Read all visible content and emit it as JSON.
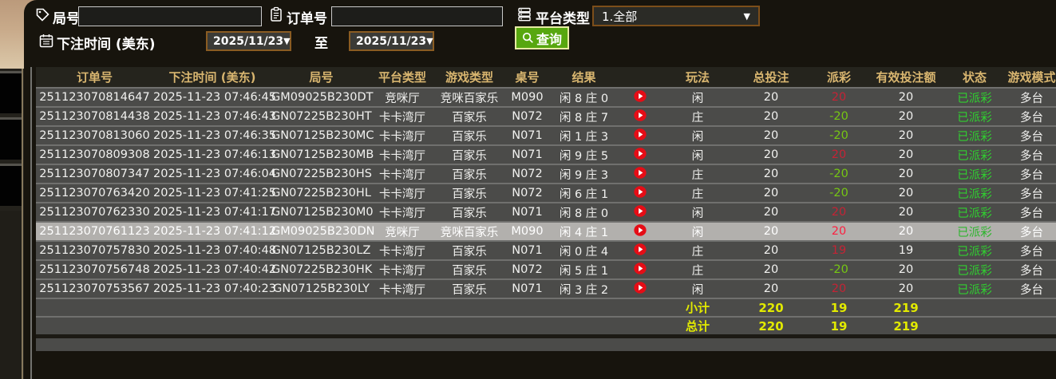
{
  "filter": {
    "game_no_label": "局号",
    "game_no_value": "",
    "order_no_label": "订单号",
    "order_no_value": "",
    "platform_label": "平台类型",
    "platform_value": "1.全部",
    "bet_time_label": "下注时间 (美东)",
    "date_from": "2025/11/23",
    "to_label": "至",
    "date_to": "2025/11/23",
    "query_button": "查询",
    "dropdown_arrow": "▼"
  },
  "table": {
    "headers": {
      "order_no": "订单号",
      "time": "下注时间 (美东)",
      "game_no": "局号",
      "platform": "平台类型",
      "game_type": "游戏类型",
      "table_no": "桌号",
      "result": "结果",
      "replay": "",
      "play": "玩法",
      "total": "总投注",
      "payout": "派彩",
      "valid": "有效投注额",
      "status": "状态",
      "mode": "游戏模式"
    },
    "rows": [
      {
        "order_no": "251123070814647",
        "time": "2025-11-23 07:46:45",
        "game_no": "GM09025B230DT",
        "platform": "竞咪厅",
        "game_type": "竞咪百家乐",
        "table_no": "M090",
        "result": "闲 8 庄 0",
        "play": "闲",
        "total": "20",
        "payout": "20",
        "valid": "20",
        "status": "已派彩",
        "mode": "多台",
        "selected": false
      },
      {
        "order_no": "251123070814438",
        "time": "2025-11-23 07:46:43",
        "game_no": "GN07225B230HT",
        "platform": "卡卡湾厅",
        "game_type": "百家乐",
        "table_no": "N072",
        "result": "闲 8 庄 7",
        "play": "庄",
        "total": "20",
        "payout": "-20",
        "valid": "20",
        "status": "已派彩",
        "mode": "多台",
        "selected": false
      },
      {
        "order_no": "251123070813060",
        "time": "2025-11-23 07:46:35",
        "game_no": "GN07125B230MC",
        "platform": "卡卡湾厅",
        "game_type": "百家乐",
        "table_no": "N071",
        "result": "闲 1 庄 3",
        "play": "闲",
        "total": "20",
        "payout": "-20",
        "valid": "20",
        "status": "已派彩",
        "mode": "多台",
        "selected": false
      },
      {
        "order_no": "251123070809308",
        "time": "2025-11-23 07:46:13",
        "game_no": "GN07125B230MB",
        "platform": "卡卡湾厅",
        "game_type": "百家乐",
        "table_no": "N071",
        "result": "闲 9 庄 5",
        "play": "闲",
        "total": "20",
        "payout": "20",
        "valid": "20",
        "status": "已派彩",
        "mode": "多台",
        "selected": false
      },
      {
        "order_no": "251123070807347",
        "time": "2025-11-23 07:46:04",
        "game_no": "GN07225B230HS",
        "platform": "卡卡湾厅",
        "game_type": "百家乐",
        "table_no": "N072",
        "result": "闲 9 庄 3",
        "play": "庄",
        "total": "20",
        "payout": "-20",
        "valid": "20",
        "status": "已派彩",
        "mode": "多台",
        "selected": false
      },
      {
        "order_no": "251123070763420",
        "time": "2025-11-23 07:41:25",
        "game_no": "GN07225B230HL",
        "platform": "卡卡湾厅",
        "game_type": "百家乐",
        "table_no": "N072",
        "result": "闲 6 庄 1",
        "play": "庄",
        "total": "20",
        "payout": "-20",
        "valid": "20",
        "status": "已派彩",
        "mode": "多台",
        "selected": false
      },
      {
        "order_no": "251123070762330",
        "time": "2025-11-23 07:41:17",
        "game_no": "GN07125B230M0",
        "platform": "卡卡湾厅",
        "game_type": "百家乐",
        "table_no": "N071",
        "result": "闲 8 庄 0",
        "play": "闲",
        "total": "20",
        "payout": "20",
        "valid": "20",
        "status": "已派彩",
        "mode": "多台",
        "selected": false
      },
      {
        "order_no": "251123070761123",
        "time": "2025-11-23 07:41:12",
        "game_no": "GM09025B230DN",
        "platform": "竞咪厅",
        "game_type": "竞咪百家乐",
        "table_no": "M090",
        "result": "闲 4 庄 1",
        "play": "闲",
        "total": "20",
        "payout": "20",
        "valid": "20",
        "status": "已派彩",
        "mode": "多台",
        "selected": true
      },
      {
        "order_no": "251123070757830",
        "time": "2025-11-23 07:40:48",
        "game_no": "GN07125B230LZ",
        "platform": "卡卡湾厅",
        "game_type": "百家乐",
        "table_no": "N071",
        "result": "闲 0 庄 4",
        "play": "庄",
        "total": "20",
        "payout": "19",
        "valid": "19",
        "status": "已派彩",
        "mode": "多台",
        "selected": false
      },
      {
        "order_no": "251123070756748",
        "time": "2025-11-23 07:40:42",
        "game_no": "GN07225B230HK",
        "platform": "卡卡湾厅",
        "game_type": "百家乐",
        "table_no": "N072",
        "result": "闲 5 庄 1",
        "play": "庄",
        "total": "20",
        "payout": "-20",
        "valid": "20",
        "status": "已派彩",
        "mode": "多台",
        "selected": false
      },
      {
        "order_no": "251123070753567",
        "time": "2025-11-23 07:40:23",
        "game_no": "GN07125B230LY",
        "platform": "卡卡湾厅",
        "game_type": "百家乐",
        "table_no": "N071",
        "result": "闲 3 庄 2",
        "play": "闲",
        "total": "20",
        "payout": "20",
        "valid": "20",
        "status": "已派彩",
        "mode": "多台",
        "selected": false
      }
    ],
    "subtotal": {
      "label": "小计",
      "total": "220",
      "payout": "19",
      "valid": "219"
    },
    "grand_total": {
      "label": "总计",
      "total": "220",
      "payout": "19",
      "valid": "219"
    }
  },
  "colors": {
    "header_gold": "#d9b670",
    "win_red": "#c52335",
    "loss_green": "#76c713",
    "status_green": "#30cf30",
    "summary_yellow": "#e2ea00",
    "query_green": "#57a70f",
    "selected_row": "#b2b0ad"
  }
}
